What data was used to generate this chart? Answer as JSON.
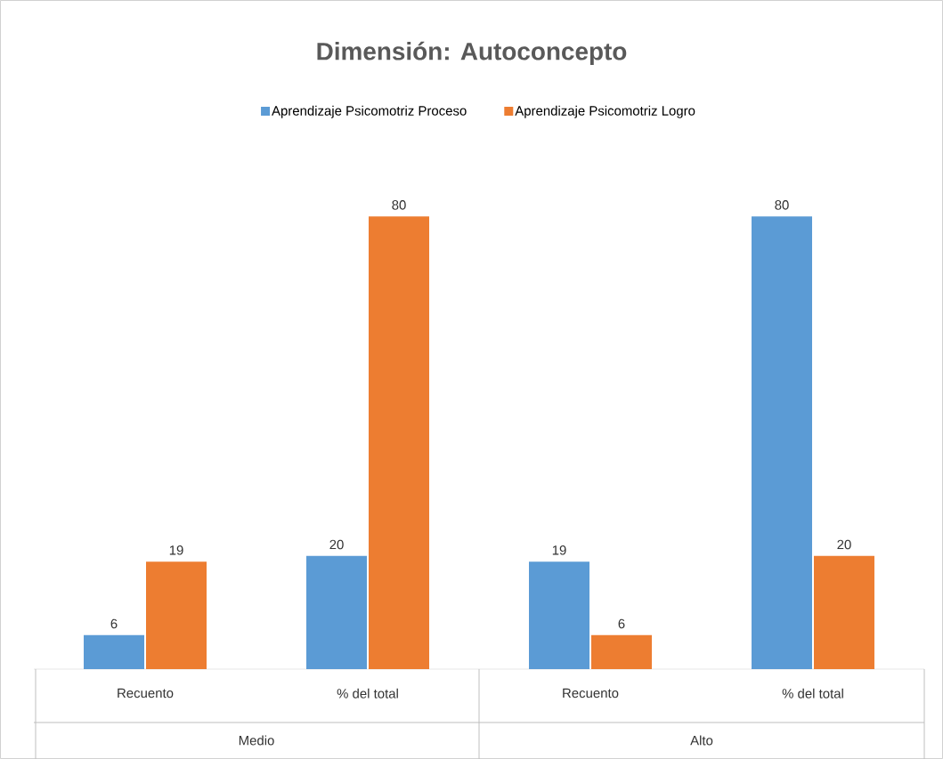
{
  "chart_data": {
    "type": "bar",
    "title": "Dimensión: Autoconcepto",
    "categories": [
      "Recuento",
      "% del total",
      "Recuento",
      "% del total"
    ],
    "series": [
      {
        "name": "Aprendizaje Psicomotriz Proceso",
        "color": "#5b9bd5",
        "values": [
          6,
          20,
          19,
          80
        ]
      },
      {
        "name": "Aprendizaje Psicomotriz Logro",
        "color": "#ed7d31",
        "values": [
          19,
          80,
          6,
          20
        ]
      }
    ],
    "annotations": [
      "Medio",
      "Alto"
    ],
    "data_labels": true,
    "legend": "top"
  }
}
